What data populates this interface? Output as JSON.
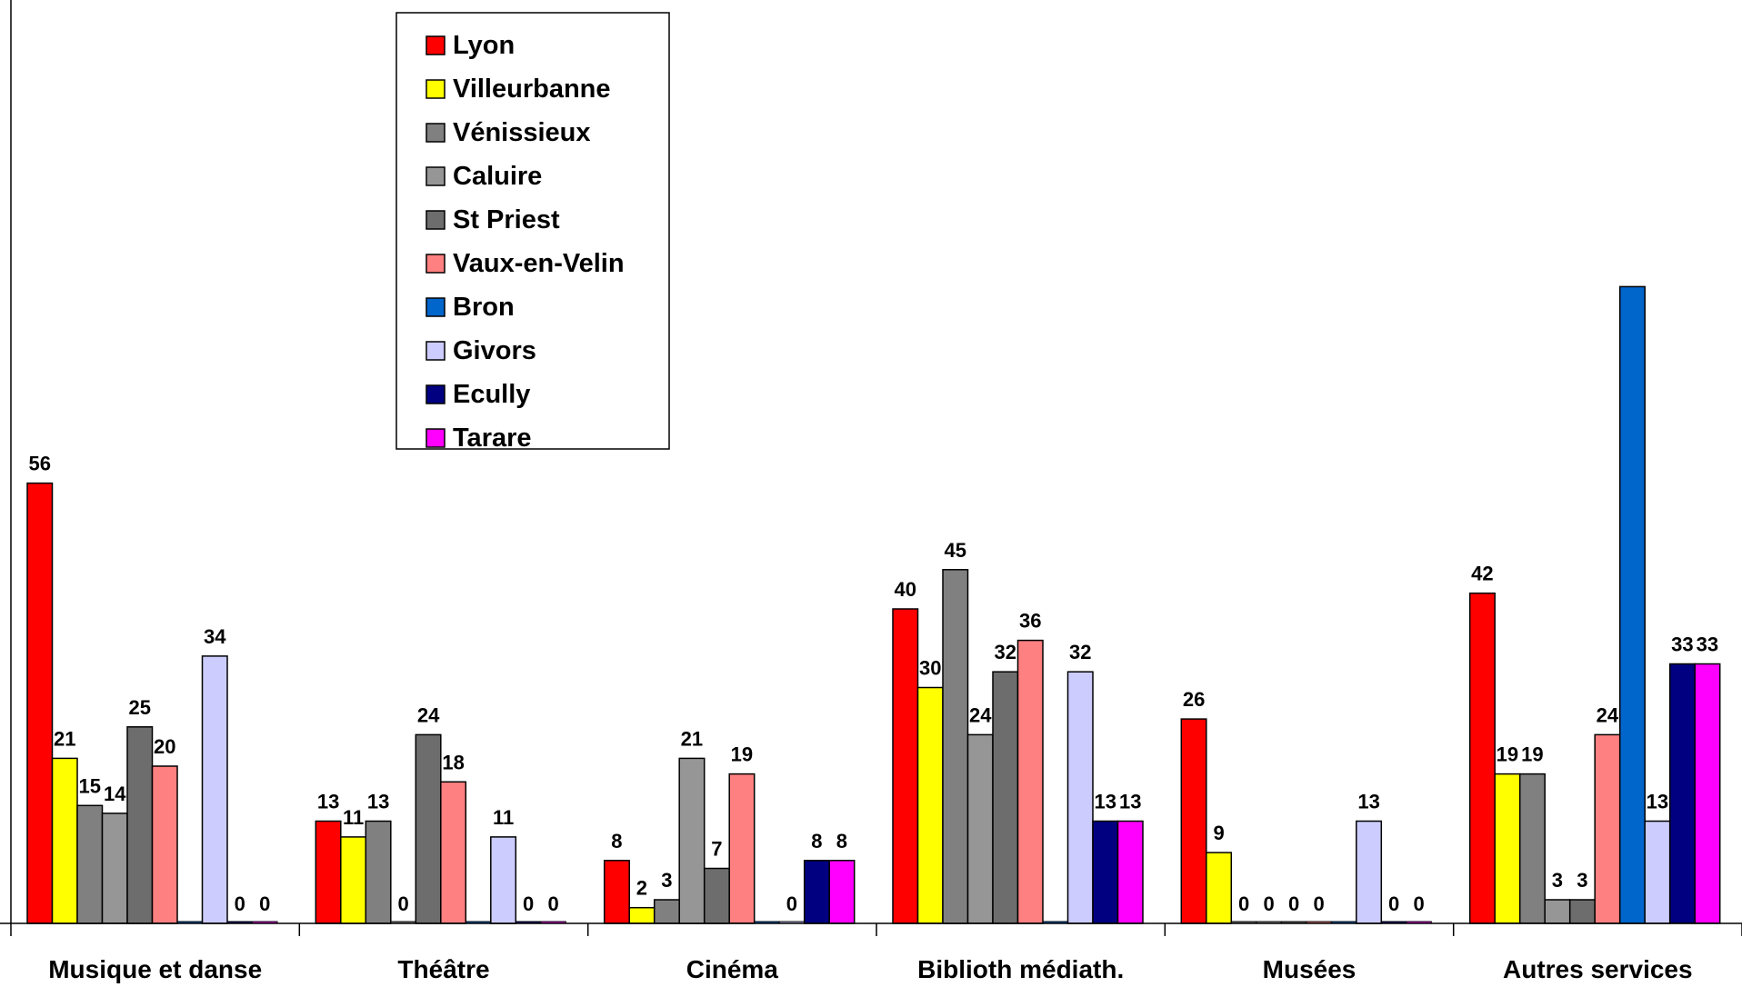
{
  "chart_data": {
    "type": "bar",
    "title": "",
    "xlabel": "",
    "ylabel": "",
    "ylim": [
      0,
      81
    ],
    "grid": false,
    "legend_position": "top-center",
    "categories": [
      "Musique et danse",
      "Théâtre",
      "Cinéma",
      "Biblioth médiath.",
      "Musées",
      "Autres services"
    ],
    "series": [
      {
        "name": "Lyon",
        "color": "#FF0000",
        "values": [
          56,
          13,
          8,
          40,
          26,
          42
        ]
      },
      {
        "name": "Villeurbanne",
        "color": "#FFFF00",
        "values": [
          21,
          11,
          2,
          30,
          9,
          19
        ]
      },
      {
        "name": "Vénissieux",
        "color": "#808080",
        "values": [
          15,
          13,
          3,
          45,
          0,
          19
        ]
      },
      {
        "name": "Caluire",
        "color": "#969696",
        "values": [
          14,
          0,
          21,
          24,
          0,
          3
        ]
      },
      {
        "name": "St Priest",
        "color": "#6D6D6D",
        "values": [
          25,
          24,
          7,
          32,
          0,
          3
        ]
      },
      {
        "name": "Vaux-en-Velin",
        "color": "#FF8080",
        "values": [
          20,
          18,
          19,
          36,
          0,
          24
        ]
      },
      {
        "name": "Bron",
        "color": "#0066CC",
        "values": [
          0,
          0,
          0,
          0,
          0,
          81
        ]
      },
      {
        "name": "Givors",
        "color": "#CCCCFF",
        "values": [
          34,
          11,
          0,
          32,
          13,
          13
        ]
      },
      {
        "name": "Ecully",
        "color": "#000080",
        "values": [
          0,
          0,
          8,
          13,
          0,
          33
        ]
      },
      {
        "name": "Tarare",
        "color": "#FF00FF",
        "values": [
          0,
          0,
          8,
          13,
          0,
          33
        ]
      }
    ],
    "value_labels_visible": [
      [
        true,
        true,
        true,
        true,
        true,
        true,
        false,
        true,
        true,
        true
      ],
      [
        true,
        true,
        true,
        true,
        true,
        true,
        false,
        true,
        true,
        true
      ],
      [
        true,
        true,
        true,
        true,
        true,
        true,
        false,
        true,
        true,
        true
      ],
      [
        true,
        true,
        true,
        true,
        true,
        true,
        false,
        true,
        true,
        true
      ],
      [
        true,
        true,
        true,
        true,
        true,
        true,
        false,
        true,
        true,
        true
      ],
      [
        true,
        true,
        true,
        true,
        true,
        true,
        false,
        true,
        true,
        true
      ]
    ]
  }
}
